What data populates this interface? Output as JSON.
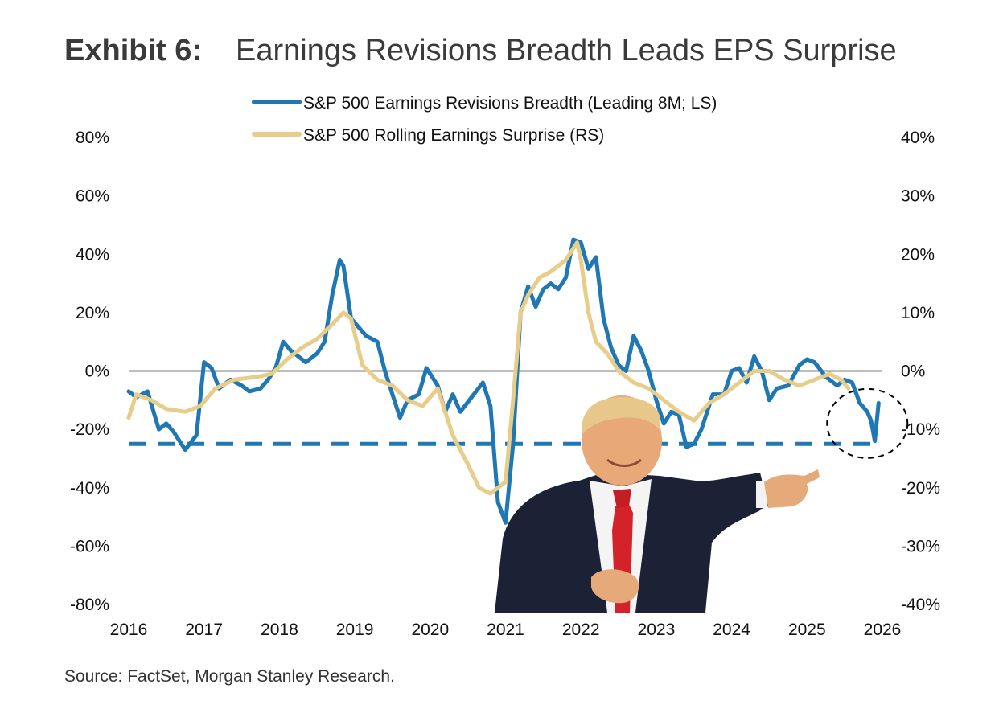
{
  "title": {
    "exhibit": "Exhibit 6:",
    "text": "Earnings Revisions Breadth Leads EPS Surprise"
  },
  "source": "Source: FactSet, Morgan Stanley Research.",
  "colors": {
    "breadth": "#1f77b4",
    "surprise": "#e8cd8a",
    "threshold": "#1f77b4",
    "zero_line": "#000000",
    "circle": "#000000"
  },
  "overlay": {
    "icon": "pointing-man-photo-icon"
  },
  "chart_data": {
    "type": "line",
    "legend": [
      "S&P 500 Earnings Revisions Breadth (Leading 8M; LS)",
      "S&P 500 Rolling Earnings Surprise (RS)"
    ],
    "legend_position": "top-center",
    "grid": false,
    "x_ticks": [
      "2016",
      "2017",
      "2018",
      "2019",
      "2020",
      "2021",
      "2022",
      "2023",
      "2024",
      "2025",
      "2026"
    ],
    "xlim": [
      2016,
      2026
    ],
    "y_left_ticks": [
      "80%",
      "60%",
      "40%",
      "20%",
      "0%",
      "-20%",
      "-40%",
      "-60%",
      "-80%"
    ],
    "y_left_lim": [
      -80,
      80
    ],
    "y_right_ticks": [
      "40%",
      "30%",
      "20%",
      "10%",
      "0%",
      "-10%",
      "-20%",
      "-30%",
      "-40%"
    ],
    "y_right_lim": [
      -40,
      40
    ],
    "reference_lines": [
      {
        "axis": "left",
        "value": 0,
        "style": "solid"
      },
      {
        "axis": "left",
        "value": -25,
        "style": "dashed"
      }
    ],
    "annotation": {
      "type": "dashed-circle",
      "x": 2025.8,
      "y_left": -18
    },
    "series": [
      {
        "name": "S&P 500 Earnings Revisions Breadth (Leading 8M; LS)",
        "axis": "left",
        "x": [
          2016.0,
          2016.1,
          2016.25,
          2016.4,
          2016.5,
          2016.6,
          2016.75,
          2016.9,
          2017.0,
          2017.1,
          2017.2,
          2017.35,
          2017.5,
          2017.6,
          2017.75,
          2017.85,
          2017.95,
          2018.05,
          2018.15,
          2018.25,
          2018.35,
          2018.5,
          2018.6,
          2018.7,
          2018.8,
          2018.85,
          2018.95,
          2019.05,
          2019.15,
          2019.3,
          2019.4,
          2019.5,
          2019.6,
          2019.7,
          2019.85,
          2019.95,
          2020.1,
          2020.2,
          2020.3,
          2020.4,
          2020.55,
          2020.7,
          2020.8,
          2020.9,
          2021.0,
          2021.1,
          2021.2,
          2021.3,
          2021.4,
          2021.5,
          2021.6,
          2021.7,
          2021.8,
          2021.9,
          2022.0,
          2022.1,
          2022.2,
          2022.3,
          2022.4,
          2022.5,
          2022.6,
          2022.7,
          2022.8,
          2022.9,
          2023.0,
          2023.1,
          2023.2,
          2023.3,
          2023.4,
          2023.5,
          2023.6,
          2023.75,
          2023.9,
          2024.0,
          2024.1,
          2024.2,
          2024.3,
          2024.4,
          2024.5,
          2024.6,
          2024.75,
          2024.9,
          2025.0,
          2025.1,
          2025.25,
          2025.4,
          2025.5,
          2025.6,
          2025.7,
          2025.8,
          2025.85,
          2025.9,
          2025.95
        ],
        "values": [
          -7,
          -9,
          -7,
          -20,
          -18,
          -21,
          -27,
          -22,
          3,
          1,
          -6,
          -3,
          -5,
          -7,
          -6,
          -3,
          1,
          10,
          7,
          5,
          3,
          6,
          10,
          26,
          38,
          36,
          18,
          15,
          12,
          10,
          0,
          -8,
          -16,
          -10,
          -8,
          1,
          -5,
          -14,
          -8,
          -14,
          -9,
          -4,
          -12,
          -45,
          -52,
          -25,
          20,
          29,
          22,
          28,
          30,
          28,
          32,
          45,
          44,
          35,
          39,
          18,
          8,
          2,
          0,
          12,
          7,
          0,
          -10,
          -18,
          -14,
          -15,
          -26,
          -25,
          -20,
          -8,
          -8,
          0,
          1,
          -4,
          5,
          0,
          -10,
          -6,
          -5,
          2,
          4,
          3,
          -2,
          -5,
          -3,
          -4,
          -11,
          -14,
          -17,
          -24,
          -11
        ]
      },
      {
        "name": "S&P 500 Rolling Earnings Surprise (RS)",
        "axis": "right",
        "x": [
          2016.0,
          2016.1,
          2016.3,
          2016.5,
          2016.75,
          2016.95,
          2017.15,
          2017.4,
          2017.7,
          2017.9,
          2018.1,
          2018.3,
          2018.5,
          2018.7,
          2018.85,
          2018.95,
          2019.1,
          2019.3,
          2019.5,
          2019.7,
          2019.9,
          2020.1,
          2020.3,
          2020.5,
          2020.65,
          2020.8,
          2021.0,
          2021.1,
          2021.2,
          2021.3,
          2021.45,
          2021.6,
          2021.8,
          2021.95,
          2022.0,
          2022.1,
          2022.2,
          2022.35,
          2022.5,
          2022.7,
          2022.9,
          2023.1,
          2023.3,
          2023.5,
          2023.7,
          2023.9,
          2024.1,
          2024.3,
          2024.5,
          2024.7,
          2024.9,
          2025.1,
          2025.3,
          2025.45,
          2025.55
        ],
        "values": [
          -8,
          -4,
          -5,
          -6.5,
          -7,
          -6,
          -3,
          -1.5,
          -1,
          -0.5,
          2,
          4,
          5.5,
          8,
          10,
          9,
          1,
          -1.5,
          -2.5,
          -5,
          -6,
          -3,
          -11,
          -16,
          -20,
          -21,
          -19,
          -5,
          10,
          13,
          16,
          17,
          19,
          22,
          19,
          10,
          5,
          3,
          0,
          -2,
          -3,
          -5,
          -7,
          -8.5,
          -5.5,
          -4,
          -2,
          0,
          0,
          -1.5,
          -2.5,
          -1.5,
          -0.5,
          -1.5,
          -3
        ]
      }
    ]
  }
}
